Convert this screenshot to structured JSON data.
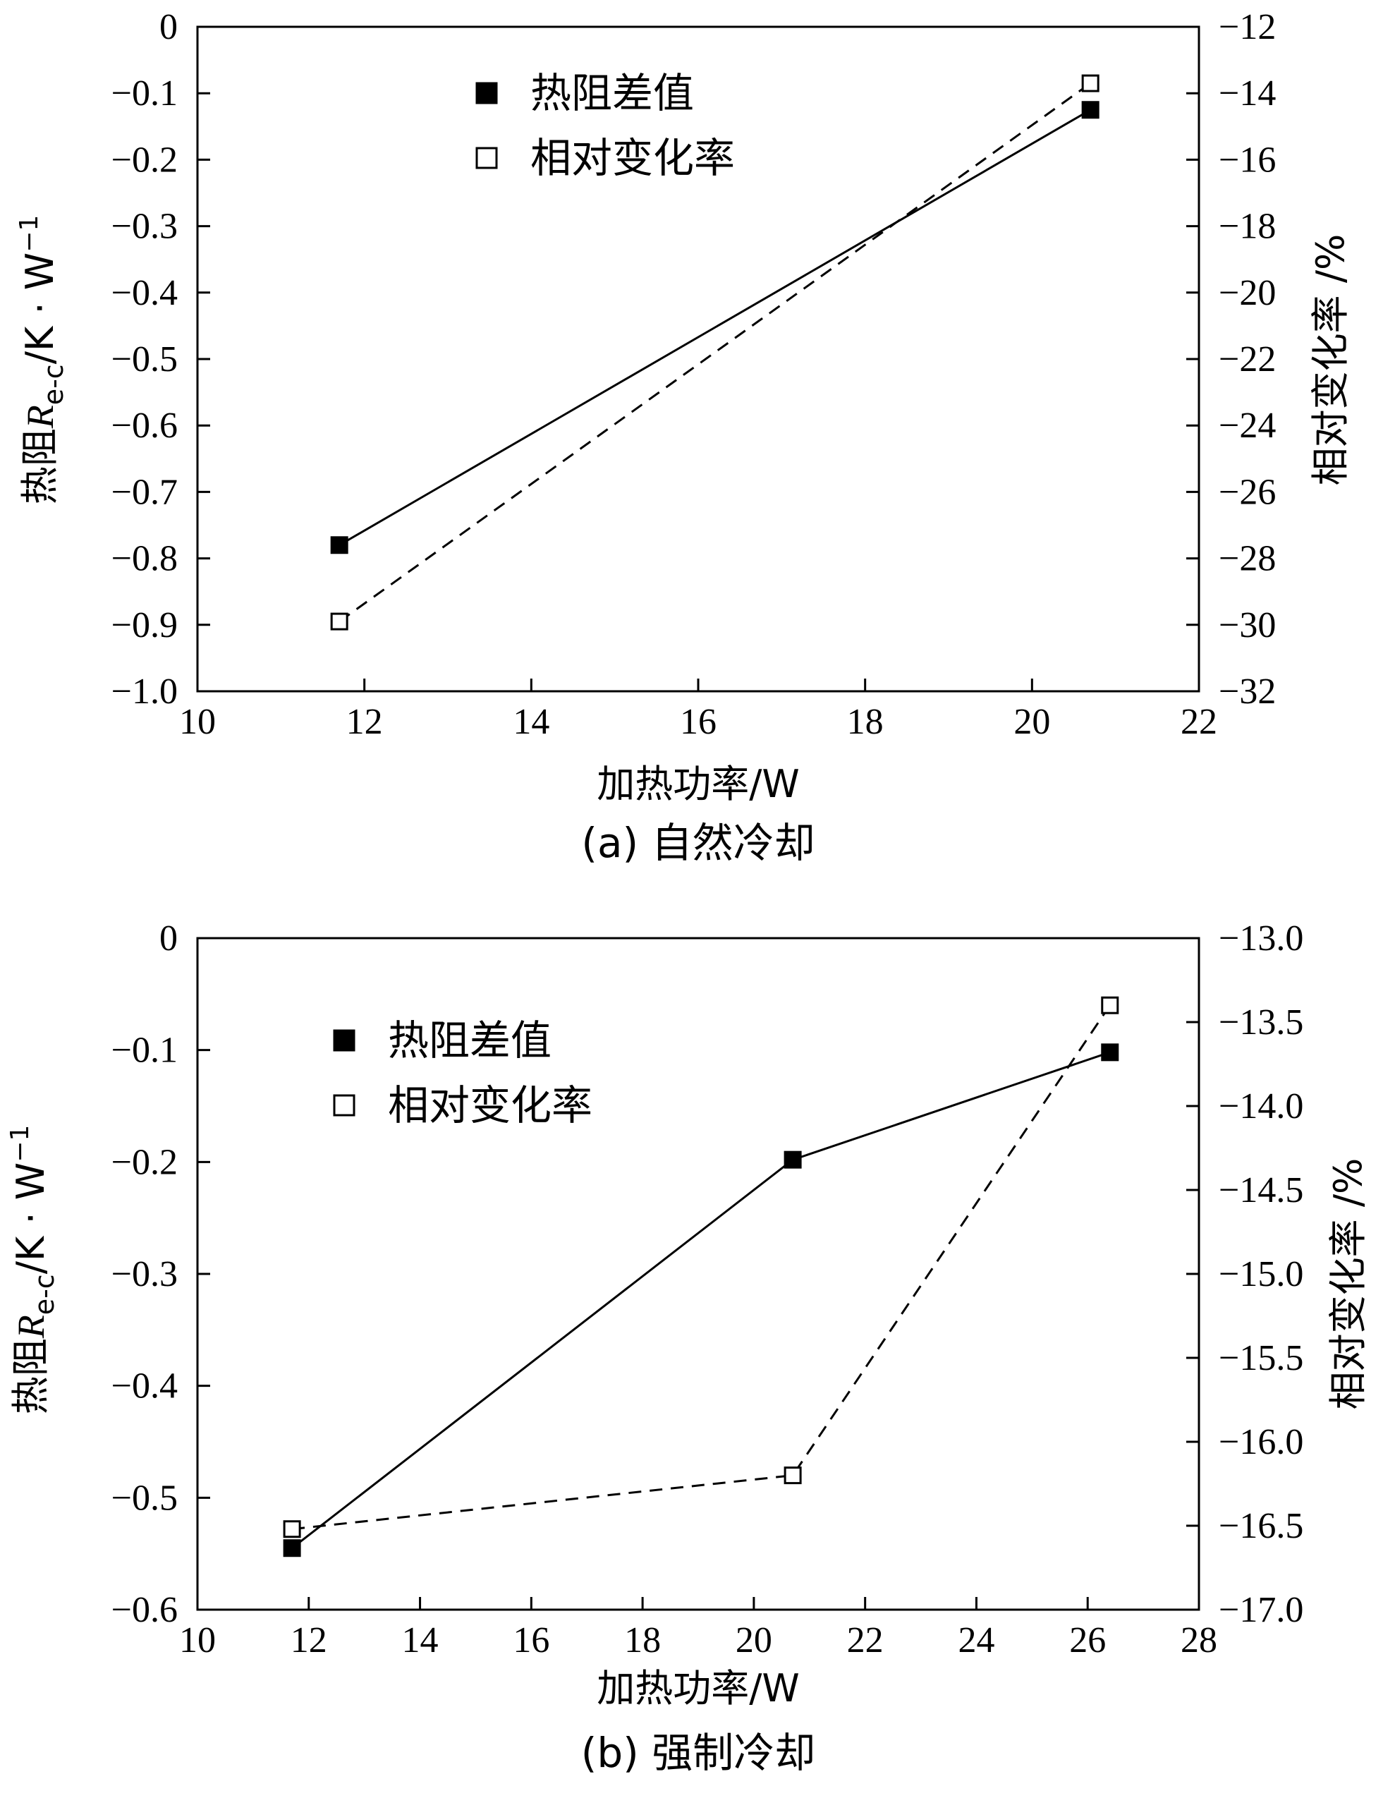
{
  "chart_data": [
    {
      "type": "line",
      "caption": "(a) 自然冷却",
      "xlabel": "加热功率/W",
      "ylabel": "热阻R_e-c/K · W^-1",
      "ylabel_parts": {
        "prefix": "热阻",
        "var": "R",
        "sub": "e-c",
        "unit": "/K · W",
        "sup": "−1"
      },
      "y2label": "相对变化率 /%",
      "xlim": [
        10,
        22
      ],
      "x_ticks": [
        10,
        12,
        14,
        16,
        18,
        20,
        22
      ],
      "x_tick_labels": [
        "10",
        "12",
        "14",
        "16",
        "18",
        "20",
        "22"
      ],
      "ylim": [
        -1.0,
        0
      ],
      "y_ticks": [
        0,
        -0.1,
        -0.2,
        -0.3,
        -0.4,
        -0.5,
        -0.6,
        -0.7,
        -0.8,
        -0.9,
        -1.0
      ],
      "y_tick_labels": [
        "0",
        "−0.1",
        "−0.2",
        "−0.3",
        "−0.4",
        "−0.5",
        "−0.6",
        "−0.7",
        "−0.8",
        "−0.9",
        "−1.0"
      ],
      "y2lim": [
        -32,
        -12
      ],
      "y2_ticks": [
        -12,
        -14,
        -16,
        -18,
        -20,
        -22,
        -24,
        -26,
        -28,
        -30,
        -32
      ],
      "y2_tick_labels": [
        "−12",
        "−14",
        "−16",
        "−18",
        "−20",
        "−22",
        "−24",
        "−26",
        "−28",
        "−30",
        "−32"
      ],
      "legend_position": "top-center",
      "grid": false,
      "series": [
        {
          "name": "热阻差值",
          "axis": "left",
          "marker": "filled-square",
          "line": "solid",
          "x": [
            11.7,
            20.7
          ],
          "values": [
            -0.78,
            -0.125
          ]
        },
        {
          "name": "相对变化率",
          "axis": "right",
          "marker": "open-square",
          "line": "dashed",
          "x": [
            11.7,
            20.7
          ],
          "values": [
            -29.9,
            -13.7
          ]
        }
      ]
    },
    {
      "type": "line",
      "caption": "(b) 强制冷却",
      "xlabel": "加热功率/W",
      "ylabel": "热阻R_e-c/K · W^-1",
      "ylabel_parts": {
        "prefix": "热阻",
        "var": "R",
        "sub": "e-c",
        "unit": "/K · W",
        "sup": "−1"
      },
      "y2label": "相对变化率 /%",
      "xlim": [
        10,
        28
      ],
      "x_ticks": [
        10,
        12,
        14,
        16,
        18,
        20,
        22,
        24,
        26,
        28
      ],
      "x_tick_labels": [
        "10",
        "12",
        "14",
        "16",
        "18",
        "20",
        "22",
        "24",
        "26",
        "28"
      ],
      "ylim": [
        -0.6,
        0
      ],
      "y_ticks": [
        0,
        -0.1,
        -0.2,
        -0.3,
        -0.4,
        -0.5,
        -0.6
      ],
      "y_tick_labels": [
        "0",
        "−0.1",
        "−0.2",
        "−0.3",
        "−0.4",
        "−0.5",
        "−0.6"
      ],
      "y2lim": [
        -17.0,
        -13.0
      ],
      "y2_ticks": [
        -13.0,
        -13.5,
        -14.0,
        -14.5,
        -15.0,
        -15.5,
        -16.0,
        -16.5,
        -17.0
      ],
      "y2_tick_labels": [
        "−13.0",
        "−13.5",
        "−14.0",
        "−14.5",
        "−15.0",
        "−15.5",
        "−16.0",
        "−16.5",
        "−17.0"
      ],
      "legend_position": "top-left",
      "grid": false,
      "series": [
        {
          "name": "热阻差值",
          "axis": "left",
          "marker": "filled-square",
          "line": "solid",
          "x": [
            11.7,
            20.7,
            26.4
          ],
          "values": [
            -0.545,
            -0.198,
            -0.102
          ]
        },
        {
          "name": "相对变化率",
          "axis": "right",
          "marker": "open-square",
          "line": "dashed",
          "x": [
            11.7,
            20.7,
            26.4
          ],
          "values": [
            -16.52,
            -16.2,
            -13.4
          ]
        }
      ]
    }
  ],
  "colors": {
    "ink": "#000000",
    "background": "#ffffff"
  }
}
